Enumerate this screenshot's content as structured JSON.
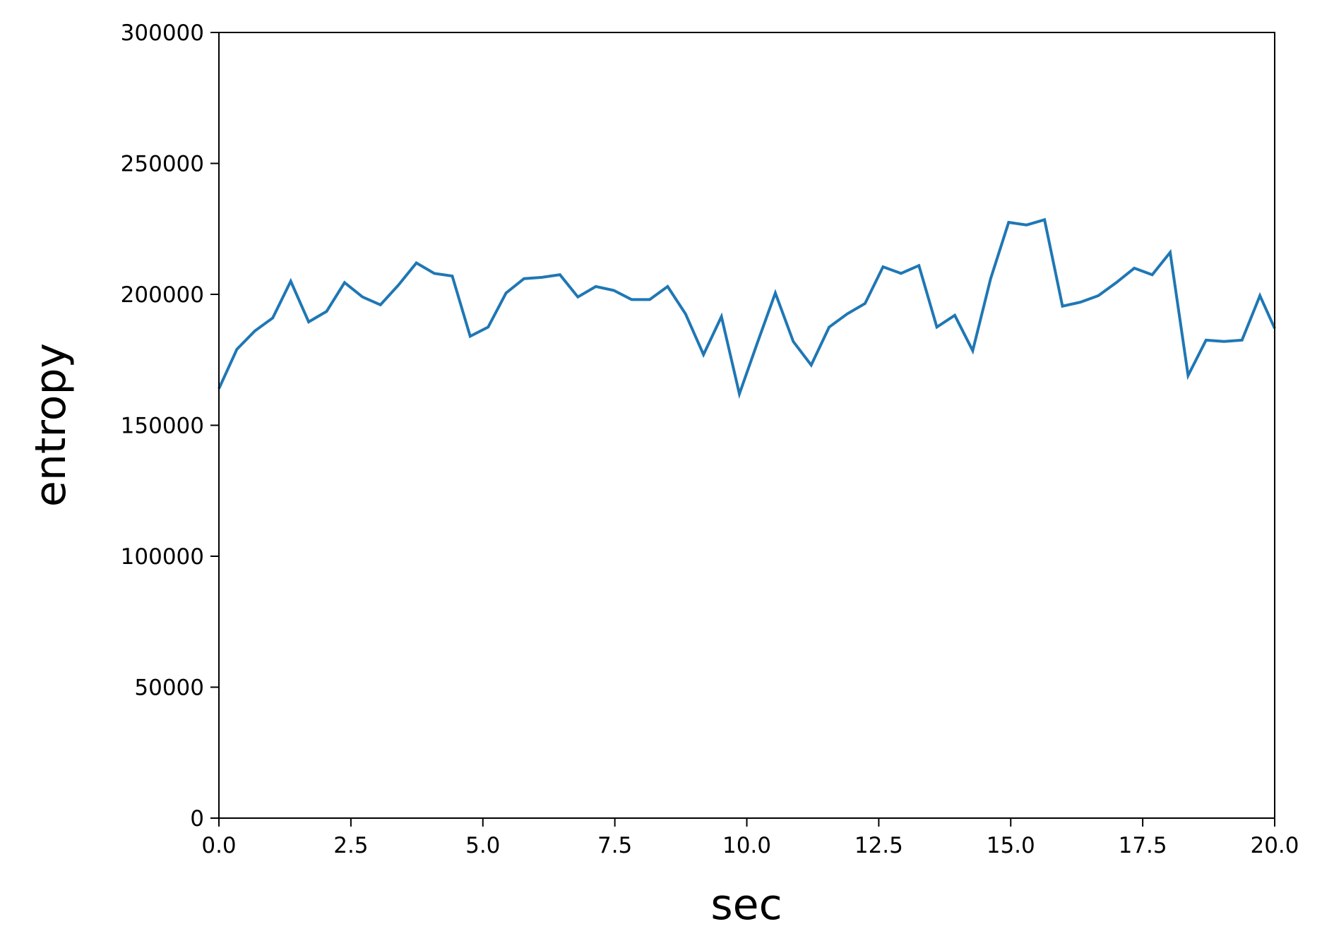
{
  "chart_data": {
    "type": "line",
    "title": "",
    "xlabel": "sec",
    "ylabel": "entropy",
    "xlim": [
      0,
      20
    ],
    "ylim": [
      0,
      300000
    ],
    "grid": false,
    "x_ticks": [
      "0.0",
      "2.5",
      "5.0",
      "7.5",
      "10.0",
      "12.5",
      "15.0",
      "17.5",
      "20.0"
    ],
    "y_ticks": [
      "0",
      "50000",
      "100000",
      "150000",
      "200000",
      "250000",
      "300000"
    ],
    "series": [
      {
        "color": "#1f77b4",
        "x": [
          0.0,
          0.34,
          0.68,
          1.02,
          1.36,
          1.7,
          2.04,
          2.38,
          2.72,
          3.06,
          3.4,
          3.74,
          4.08,
          4.42,
          4.76,
          5.1,
          5.44,
          5.78,
          6.12,
          6.46,
          6.8,
          7.14,
          7.48,
          7.82,
          8.16,
          8.5,
          8.84,
          9.18,
          9.52,
          9.86,
          10.2,
          10.54,
          10.88,
          11.22,
          11.56,
          11.9,
          12.24,
          12.58,
          12.92,
          13.26,
          13.6,
          13.94,
          14.28,
          14.62,
          14.96,
          15.3,
          15.64,
          15.98,
          16.32,
          16.66,
          17.0,
          17.34,
          17.68,
          18.02,
          18.36,
          18.7,
          19.04,
          19.38,
          19.72,
          20.0
        ],
        "y": [
          164000,
          179000,
          186000,
          191000,
          205000,
          189500,
          193500,
          204500,
          199000,
          196000,
          203500,
          212000,
          208000,
          207000,
          184000,
          187500,
          200500,
          206000,
          206500,
          207500,
          199000,
          203000,
          201500,
          198000,
          198000,
          203000,
          192500,
          177000,
          191500,
          162000,
          181500,
          200500,
          182000,
          173000,
          187500,
          192500,
          196500,
          210500,
          208000,
          211000,
          187500,
          192000,
          178500,
          206000,
          227500,
          226500,
          228500,
          195500,
          197000,
          199500,
          204500,
          210000,
          207500,
          216000,
          169000,
          182500,
          182000,
          182500,
          199500,
          187000
        ]
      }
    ]
  }
}
